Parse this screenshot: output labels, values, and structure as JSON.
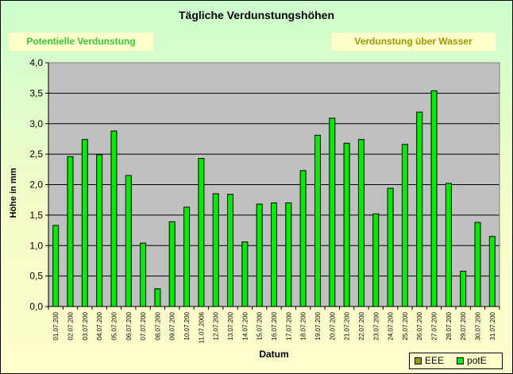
{
  "colors": {
    "plot_area": "#c0c0c0",
    "bar": "#00ee00",
    "legend_series_1": "#999900",
    "legend_series_2": "#00ee00"
  },
  "tags": {
    "left": "Potentielle Verdunstung",
    "right": "Verdunstung über Wasser"
  },
  "legend": {
    "items": [
      {
        "label": "EEE"
      },
      {
        "label": "potE"
      }
    ]
  },
  "chart_data": {
    "type": "bar",
    "title": "Tägliche Verdunstungshöhen",
    "xlabel": "Datum",
    "ylabel": "Höhe in mm",
    "ylim": [
      0,
      4
    ],
    "yticks": [
      "0,0",
      "0,5",
      "1,0",
      "1,5",
      "2,0",
      "2,5",
      "3,0",
      "3,5",
      "4,0"
    ],
    "grid": true,
    "legend_position": "bottom-right",
    "categories": [
      "01.07.200",
      "02.07.200",
      "03.07.200",
      "04.07.200",
      "05.07.200",
      "06.07.200",
      "07.07.200",
      "08.07.200",
      "09.07.200",
      "10.07.200",
      "11.07.2006",
      "12.07.200",
      "13.07.200",
      "14.07.200",
      "15.07.200",
      "16.07.200",
      "17.07.200",
      "18.07.200",
      "19.07.200",
      "20.07.200",
      "21.07.200",
      "22.07.200",
      "23.07.200",
      "24.07.200",
      "25.07.200",
      "26.07.200",
      "27.07.200",
      "28.07.200",
      "29.07.200",
      "30.07.200",
      "31.07.200"
    ],
    "series": [
      {
        "name": "potE",
        "values": [
          1.33,
          2.46,
          2.74,
          2.49,
          2.88,
          2.15,
          1.04,
          0.29,
          1.39,
          1.63,
          2.43,
          1.85,
          1.84,
          1.06,
          1.68,
          1.7,
          1.7,
          2.23,
          2.81,
          3.09,
          2.68,
          2.74,
          1.52,
          1.94,
          2.66,
          3.19,
          3.54,
          2.02,
          0.58,
          1.38,
          1.15
        ]
      }
    ]
  }
}
